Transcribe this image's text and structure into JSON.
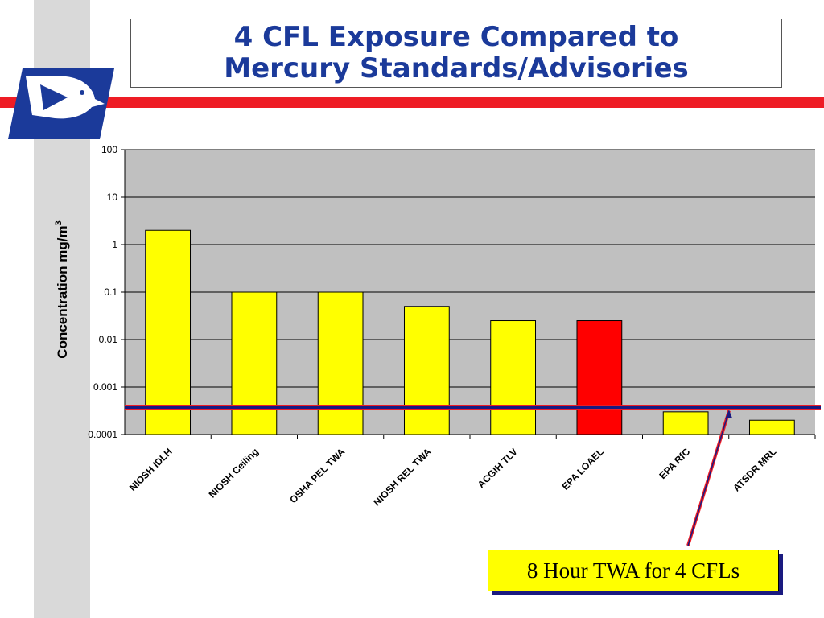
{
  "slide": {
    "title_line1": "4 CFL Exposure Compared to",
    "title_line2": "Mercury Standards/Advisories",
    "callout": "8 Hour TWA for 4 CFLs"
  },
  "colors": {
    "title": "#1b3a9a",
    "band": "#ee1c25",
    "plot_bg": "#c0c0c0",
    "bar_default": "#ffff00",
    "bar_highlight": "#ff0000",
    "reference_line": "#1a1a80",
    "reference_line_outline": "#ee1c25"
  },
  "chart_data": {
    "type": "bar",
    "yscale": "log",
    "ylim": [
      0.0001,
      100
    ],
    "yticks": [
      "0.0001",
      "0.001",
      "0.01",
      "0.1",
      "1",
      "10",
      "100"
    ],
    "ylabel": "Concentration   mg/m",
    "ylabel_superscript": "3",
    "grid": true,
    "categories": [
      "NIOSH IDLH",
      "NIOSH Ceiling",
      "OSHA PEL TWA",
      "NIOSH REL TWA",
      "ACGIH TLV",
      "EPA LOAEL",
      "EPA RfC",
      "ATSDR MRL"
    ],
    "values": [
      2,
      0.1,
      0.1,
      0.05,
      0.025,
      0.025,
      0.0003,
      0.0002
    ],
    "highlight": [
      "EPA LOAEL"
    ],
    "reference_line": {
      "label": "8 Hour TWA for 4 CFLs",
      "value": 0.00037
    }
  }
}
